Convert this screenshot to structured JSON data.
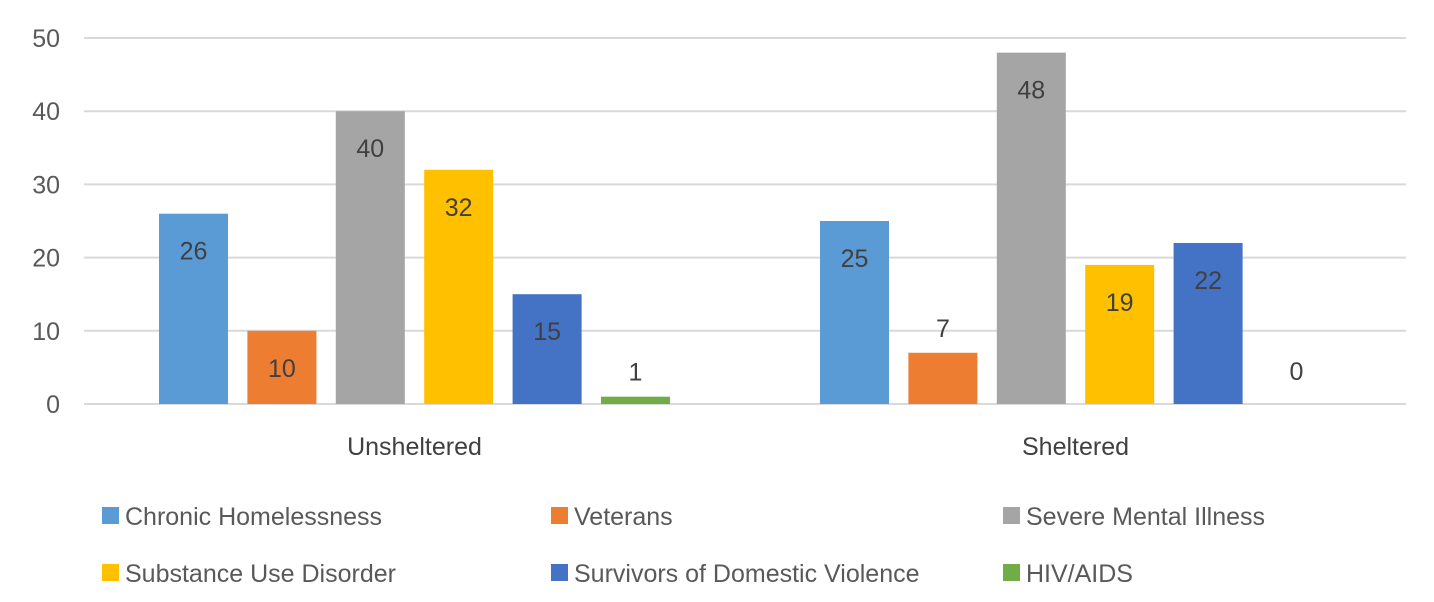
{
  "chart_data": {
    "type": "bar",
    "categories": [
      "Unsheltered",
      "Sheltered"
    ],
    "series": [
      {
        "name": "Chronic Homelessness",
        "values": [
          26,
          25
        ],
        "color": "#5B9BD5"
      },
      {
        "name": "Veterans",
        "values": [
          10,
          7
        ],
        "color": "#ED7D31"
      },
      {
        "name": "Severe Mental Illness",
        "values": [
          40,
          48
        ],
        "color": "#A5A5A5"
      },
      {
        "name": "Substance Use Disorder",
        "values": [
          32,
          19
        ],
        "color": "#FFC000"
      },
      {
        "name": "Survivors of Domestic Violence",
        "values": [
          15,
          22
        ],
        "color": "#4472C4"
      },
      {
        "name": "HIV/AIDS",
        "values": [
          1,
          0
        ],
        "color": "#70AD47"
      }
    ],
    "ylim": [
      0,
      50
    ],
    "yticks": [
      0,
      10,
      20,
      30,
      40,
      50
    ],
    "grid": true,
    "legend_position": "bottom",
    "data_labels": true
  }
}
